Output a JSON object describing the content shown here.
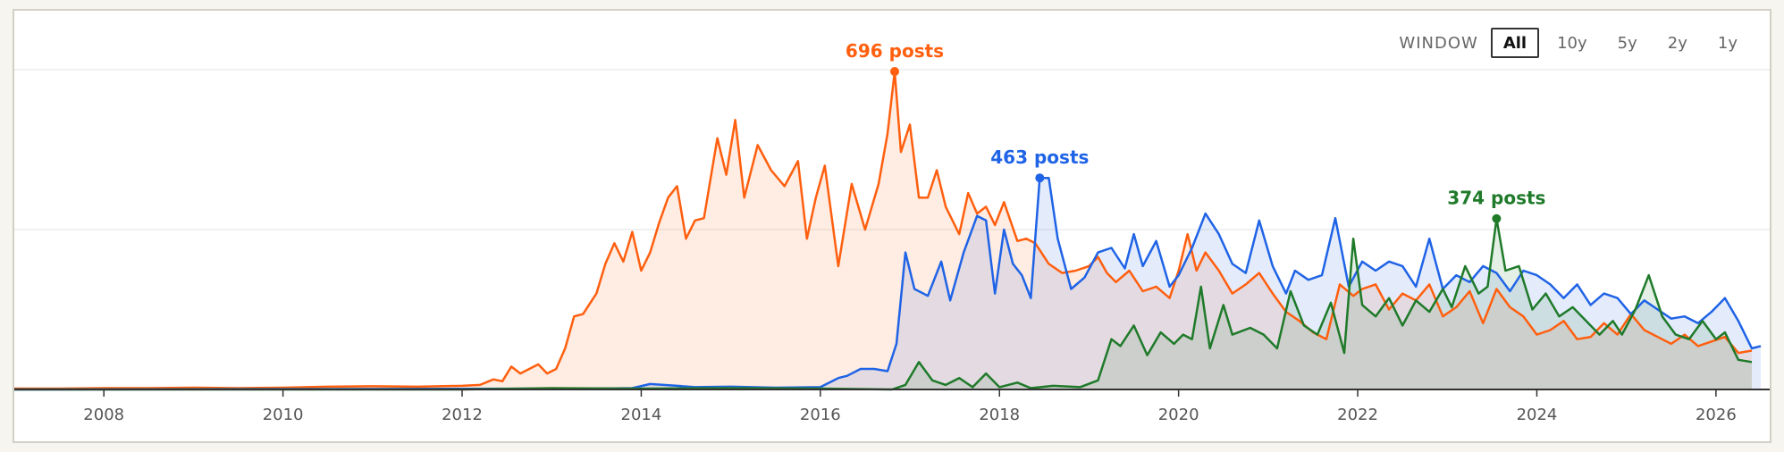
{
  "window_control": {
    "label": "WINDOW",
    "options": [
      "All",
      "10y",
      "5y",
      "2y",
      "1y"
    ],
    "selected": "All"
  },
  "chart_data": {
    "type": "line",
    "fill": "area",
    "x_unit": "year (fractional)",
    "xlim": [
      2007.0,
      2026.6
    ],
    "ylim": [
      0,
      700
    ],
    "grid": "horizontal",
    "xticks": [
      "2008",
      "2010",
      "2012",
      "2014",
      "2016",
      "2018",
      "2020",
      "2022",
      "2024",
      "2026"
    ],
    "series": [
      {
        "color": "#ff5f0f",
        "peak_label": "696 posts",
        "peak": {
          "x": 2016.83,
          "y": 696
        },
        "points": [
          [
            2007.0,
            2
          ],
          [
            2007.5,
            2
          ],
          [
            2008.0,
            3
          ],
          [
            2008.5,
            3
          ],
          [
            2009.0,
            4
          ],
          [
            2009.5,
            3
          ],
          [
            2010.0,
            4
          ],
          [
            2010.5,
            6
          ],
          [
            2011.0,
            7
          ],
          [
            2011.5,
            6
          ],
          [
            2012.0,
            8
          ],
          [
            2012.2,
            10
          ],
          [
            2012.35,
            22
          ],
          [
            2012.45,
            18
          ],
          [
            2012.55,
            50
          ],
          [
            2012.65,
            35
          ],
          [
            2012.75,
            45
          ],
          [
            2012.85,
            55
          ],
          [
            2012.95,
            35
          ],
          [
            2013.05,
            45
          ],
          [
            2013.15,
            90
          ],
          [
            2013.25,
            160
          ],
          [
            2013.35,
            165
          ],
          [
            2013.5,
            210
          ],
          [
            2013.6,
            275
          ],
          [
            2013.7,
            320
          ],
          [
            2013.8,
            280
          ],
          [
            2013.9,
            345
          ],
          [
            2014.0,
            260
          ],
          [
            2014.1,
            300
          ],
          [
            2014.2,
            365
          ],
          [
            2014.3,
            420
          ],
          [
            2014.4,
            445
          ],
          [
            2014.5,
            330
          ],
          [
            2014.6,
            370
          ],
          [
            2014.7,
            375
          ],
          [
            2014.85,
            550
          ],
          [
            2014.95,
            470
          ],
          [
            2015.05,
            590
          ],
          [
            2015.15,
            420
          ],
          [
            2015.3,
            535
          ],
          [
            2015.45,
            480
          ],
          [
            2015.6,
            445
          ],
          [
            2015.75,
            500
          ],
          [
            2015.85,
            330
          ],
          [
            2015.95,
            420
          ],
          [
            2016.05,
            490
          ],
          [
            2016.2,
            270
          ],
          [
            2016.35,
            450
          ],
          [
            2016.5,
            350
          ],
          [
            2016.65,
            450
          ],
          [
            2016.75,
            560
          ],
          [
            2016.83,
            696
          ],
          [
            2016.9,
            520
          ],
          [
            2017.0,
            580
          ],
          [
            2017.1,
            420
          ],
          [
            2017.2,
            420
          ],
          [
            2017.3,
            480
          ],
          [
            2017.4,
            400
          ],
          [
            2017.55,
            340
          ],
          [
            2017.65,
            430
          ],
          [
            2017.75,
            385
          ],
          [
            2017.85,
            400
          ],
          [
            2017.95,
            360
          ],
          [
            2018.05,
            410
          ],
          [
            2018.2,
            325
          ],
          [
            2018.3,
            330
          ],
          [
            2018.4,
            320
          ],
          [
            2018.55,
            275
          ],
          [
            2018.7,
            255
          ],
          [
            2018.85,
            260
          ],
          [
            2019.0,
            270
          ],
          [
            2019.1,
            290
          ],
          [
            2019.2,
            255
          ],
          [
            2019.3,
            235
          ],
          [
            2019.45,
            260
          ],
          [
            2019.6,
            215
          ],
          [
            2019.75,
            225
          ],
          [
            2019.9,
            200
          ],
          [
            2020.0,
            260
          ],
          [
            2020.1,
            340
          ],
          [
            2020.2,
            260
          ],
          [
            2020.3,
            300
          ],
          [
            2020.45,
            260
          ],
          [
            2020.6,
            210
          ],
          [
            2020.75,
            230
          ],
          [
            2020.9,
            255
          ],
          [
            2021.05,
            210
          ],
          [
            2021.2,
            170
          ],
          [
            2021.35,
            150
          ],
          [
            2021.5,
            125
          ],
          [
            2021.65,
            110
          ],
          [
            2021.8,
            230
          ],
          [
            2021.95,
            205
          ],
          [
            2022.05,
            220
          ],
          [
            2022.2,
            230
          ],
          [
            2022.35,
            175
          ],
          [
            2022.5,
            210
          ],
          [
            2022.65,
            195
          ],
          [
            2022.8,
            230
          ],
          [
            2022.95,
            160
          ],
          [
            2023.1,
            180
          ],
          [
            2023.25,
            215
          ],
          [
            2023.4,
            145
          ],
          [
            2023.55,
            220
          ],
          [
            2023.7,
            180
          ],
          [
            2023.85,
            160
          ],
          [
            2024.0,
            120
          ],
          [
            2024.15,
            130
          ],
          [
            2024.3,
            150
          ],
          [
            2024.45,
            110
          ],
          [
            2024.6,
            115
          ],
          [
            2024.75,
            145
          ],
          [
            2024.9,
            120
          ],
          [
            2025.05,
            165
          ],
          [
            2025.2,
            130
          ],
          [
            2025.35,
            115
          ],
          [
            2025.5,
            100
          ],
          [
            2025.65,
            120
          ],
          [
            2025.8,
            95
          ],
          [
            2025.95,
            105
          ],
          [
            2026.1,
            115
          ],
          [
            2026.25,
            80
          ],
          [
            2026.4,
            85
          ]
        ]
      },
      {
        "color": "#1f63e6",
        "peak_label": "463 posts",
        "peak": {
          "x": 2018.45,
          "y": 463
        },
        "points": [
          [
            2007.0,
            0
          ],
          [
            2013.5,
            2
          ],
          [
            2013.9,
            3
          ],
          [
            2014.1,
            12
          ],
          [
            2014.4,
            8
          ],
          [
            2014.6,
            5
          ],
          [
            2015.0,
            6
          ],
          [
            2015.5,
            4
          ],
          [
            2016.0,
            5
          ],
          [
            2016.2,
            25
          ],
          [
            2016.3,
            30
          ],
          [
            2016.45,
            45
          ],
          [
            2016.6,
            45
          ],
          [
            2016.75,
            40
          ],
          [
            2016.85,
            100
          ],
          [
            2016.95,
            300
          ],
          [
            2017.05,
            220
          ],
          [
            2017.2,
            205
          ],
          [
            2017.35,
            280
          ],
          [
            2017.45,
            195
          ],
          [
            2017.6,
            300
          ],
          [
            2017.75,
            380
          ],
          [
            2017.85,
            370
          ],
          [
            2017.95,
            210
          ],
          [
            2018.05,
            350
          ],
          [
            2018.15,
            275
          ],
          [
            2018.25,
            250
          ],
          [
            2018.35,
            200
          ],
          [
            2018.45,
            463
          ],
          [
            2018.55,
            463
          ],
          [
            2018.65,
            330
          ],
          [
            2018.8,
            220
          ],
          [
            2018.95,
            245
          ],
          [
            2019.1,
            300
          ],
          [
            2019.25,
            310
          ],
          [
            2019.4,
            265
          ],
          [
            2019.5,
            340
          ],
          [
            2019.6,
            270
          ],
          [
            2019.75,
            325
          ],
          [
            2019.9,
            225
          ],
          [
            2020.0,
            250
          ],
          [
            2020.15,
            310
          ],
          [
            2020.3,
            385
          ],
          [
            2020.45,
            340
          ],
          [
            2020.6,
            275
          ],
          [
            2020.75,
            255
          ],
          [
            2020.9,
            370
          ],
          [
            2021.05,
            270
          ],
          [
            2021.2,
            210
          ],
          [
            2021.3,
            260
          ],
          [
            2021.45,
            240
          ],
          [
            2021.6,
            250
          ],
          [
            2021.75,
            375
          ],
          [
            2021.9,
            225
          ],
          [
            2022.05,
            280
          ],
          [
            2022.2,
            260
          ],
          [
            2022.35,
            280
          ],
          [
            2022.5,
            270
          ],
          [
            2022.65,
            225
          ],
          [
            2022.8,
            330
          ],
          [
            2022.95,
            220
          ],
          [
            2023.1,
            250
          ],
          [
            2023.25,
            235
          ],
          [
            2023.4,
            270
          ],
          [
            2023.55,
            255
          ],
          [
            2023.7,
            215
          ],
          [
            2023.85,
            260
          ],
          [
            2024.0,
            250
          ],
          [
            2024.15,
            230
          ],
          [
            2024.3,
            200
          ],
          [
            2024.45,
            230
          ],
          [
            2024.6,
            185
          ],
          [
            2024.75,
            210
          ],
          [
            2024.9,
            200
          ],
          [
            2025.05,
            165
          ],
          [
            2025.2,
            195
          ],
          [
            2025.35,
            175
          ],
          [
            2025.5,
            155
          ],
          [
            2025.65,
            160
          ],
          [
            2025.8,
            145
          ],
          [
            2025.95,
            170
          ],
          [
            2026.1,
            200
          ],
          [
            2026.25,
            150
          ],
          [
            2026.4,
            90
          ],
          [
            2026.5,
            95
          ]
        ]
      },
      {
        "color": "#1f7a2a",
        "peak_label": "374 posts",
        "peak": {
          "x": 2023.55,
          "y": 374
        },
        "points": [
          [
            2007.0,
            0
          ],
          [
            2012.0,
            0
          ],
          [
            2013.0,
            3
          ],
          [
            2014.0,
            2
          ],
          [
            2015.0,
            3
          ],
          [
            2016.0,
            2
          ],
          [
            2016.8,
            0
          ],
          [
            2016.95,
            10
          ],
          [
            2017.1,
            60
          ],
          [
            2017.25,
            20
          ],
          [
            2017.4,
            10
          ],
          [
            2017.55,
            25
          ],
          [
            2017.7,
            5
          ],
          [
            2017.85,
            35
          ],
          [
            2018.0,
            5
          ],
          [
            2018.2,
            15
          ],
          [
            2018.35,
            3
          ],
          [
            2018.6,
            8
          ],
          [
            2018.9,
            5
          ],
          [
            2019.1,
            20
          ],
          [
            2019.25,
            110
          ],
          [
            2019.35,
            95
          ],
          [
            2019.5,
            140
          ],
          [
            2019.65,
            75
          ],
          [
            2019.8,
            125
          ],
          [
            2019.95,
            100
          ],
          [
            2020.05,
            120
          ],
          [
            2020.15,
            110
          ],
          [
            2020.25,
            225
          ],
          [
            2020.35,
            90
          ],
          [
            2020.5,
            185
          ],
          [
            2020.6,
            120
          ],
          [
            2020.8,
            135
          ],
          [
            2020.95,
            120
          ],
          [
            2021.1,
            90
          ],
          [
            2021.25,
            215
          ],
          [
            2021.4,
            140
          ],
          [
            2021.55,
            120
          ],
          [
            2021.7,
            190
          ],
          [
            2021.85,
            80
          ],
          [
            2021.95,
            330
          ],
          [
            2022.05,
            185
          ],
          [
            2022.2,
            160
          ],
          [
            2022.35,
            200
          ],
          [
            2022.5,
            140
          ],
          [
            2022.65,
            195
          ],
          [
            2022.8,
            170
          ],
          [
            2022.95,
            220
          ],
          [
            2023.05,
            180
          ],
          [
            2023.2,
            270
          ],
          [
            2023.35,
            210
          ],
          [
            2023.45,
            225
          ],
          [
            2023.55,
            374
          ],
          [
            2023.65,
            260
          ],
          [
            2023.8,
            270
          ],
          [
            2023.95,
            175
          ],
          [
            2024.1,
            210
          ],
          [
            2024.25,
            160
          ],
          [
            2024.4,
            180
          ],
          [
            2024.55,
            150
          ],
          [
            2024.7,
            120
          ],
          [
            2024.85,
            150
          ],
          [
            2024.95,
            120
          ],
          [
            2025.1,
            175
          ],
          [
            2025.25,
            250
          ],
          [
            2025.4,
            160
          ],
          [
            2025.55,
            120
          ],
          [
            2025.7,
            110
          ],
          [
            2025.85,
            150
          ],
          [
            2026.0,
            110
          ],
          [
            2026.1,
            125
          ],
          [
            2026.25,
            65
          ],
          [
            2026.4,
            60
          ]
        ]
      }
    ]
  }
}
